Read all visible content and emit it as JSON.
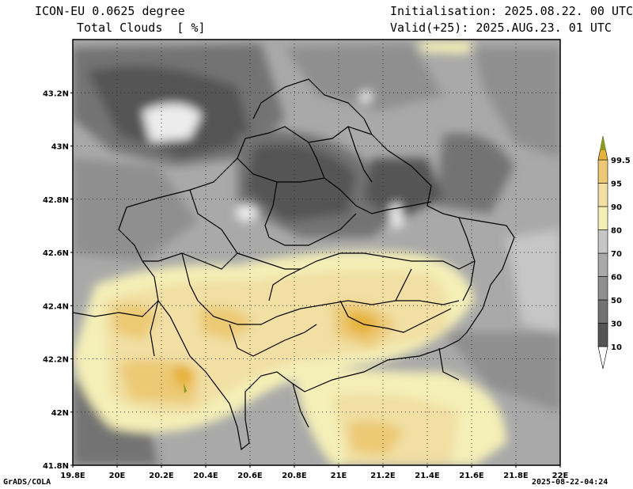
{
  "header": {
    "model": "ICON-EU 0.0625 degree",
    "field": "Total Clouds  [ %]",
    "init": "Initialisation: 2025.08.22. 00 UTC",
    "valid": "Valid(+25): 2025.AUG.23. 01 UTC"
  },
  "footer": {
    "credit": "GrADS/COLA",
    "timestamp": "2025-08-22-04:24"
  },
  "axes": {
    "lon_labels": [
      "19.8E",
      "20E",
      "20.2E",
      "20.4E",
      "20.6E",
      "20.8E",
      "21E",
      "21.2E",
      "21.4E",
      "21.6E",
      "21.8E",
      "22E"
    ],
    "lat_labels": [
      "43.2N",
      "43N",
      "42.8N",
      "42.6N",
      "42.4N",
      "42.2N",
      "42N",
      "41.8N"
    ]
  },
  "legend": {
    "levels": [
      "10",
      "30",
      "50",
      "60",
      "70",
      "80",
      "90",
      "95",
      "99.5"
    ],
    "colors": [
      "#555555",
      "#737373",
      "#8f8f8f",
      "#a9a9a9",
      "#c6c6c6",
      "#f4efb7",
      "#f1dfa3",
      "#ecc974",
      "#e7b23b",
      "#8a9a1a"
    ]
  },
  "map": {
    "region": "Kosovo",
    "field_units": "%"
  }
}
